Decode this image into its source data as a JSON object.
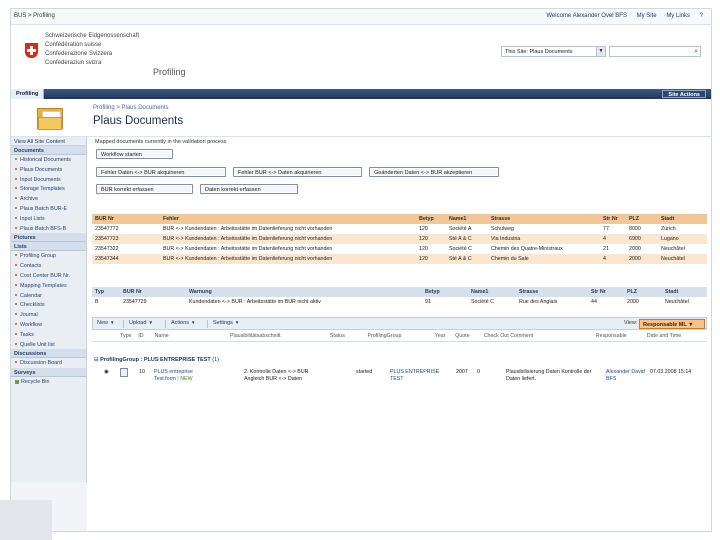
{
  "topbar": {
    "breadcrumb": "BUS > Profiling",
    "links": [
      "Welcome Alexander Ovel BFS",
      "My Site",
      "My Links",
      "?"
    ]
  },
  "header": {
    "confederation_lines": [
      "Schweizerische Eidgenossenschaft",
      "Confédération suisse",
      "Confederazione Svizzera",
      "Confederaziun svizra"
    ],
    "site_name": "Profiling",
    "search_scope": "This Site: Plaus Documents",
    "search_placeholder": ""
  },
  "nav": {
    "tab": "Profiling",
    "site_actions": "Site Actions"
  },
  "title_area": {
    "breadcrumb": "Profiling > Plaus Documents",
    "title": "Plaus Documents"
  },
  "leftnav": {
    "top_link": "View All Site Content",
    "sections": [
      {
        "heading": "Documents",
        "items": [
          "Historical Documents",
          "Plaus Documents",
          "Input Documents",
          "Storage Templates",
          "Archive",
          "Plaus Batch BUR-E",
          "Input Lists",
          "Plaus Batch BFS-B"
        ]
      },
      {
        "heading": "Pictures",
        "items": []
      },
      {
        "heading": "Lists",
        "items": [
          "Profiling Group",
          "Contacts",
          "Cost Center BUR Nr.",
          "Mapping Templates",
          "Calendar",
          "Checklists",
          "Journal",
          "Workflow",
          "Tasks",
          "Quelle Unit list"
        ]
      },
      {
        "heading": "Discussions",
        "items": [
          "Discussion Board"
        ]
      },
      {
        "heading": "Surveys",
        "items": []
      }
    ],
    "recycle_bin": "Recycle Bin"
  },
  "main": {
    "description": "Mapped documents currently in the validation process",
    "buttons": {
      "start": "Workflow starten",
      "b1": "Fehler Daten <-> BUR akquirieren",
      "b2": "Fehler BUR <-> Daten akquirieren",
      "b3": "Geänderten Daten <-> BUR akzeptieren",
      "b4": "BUR korrekt erfassen",
      "b5": "Daten korrekt erfassen"
    },
    "errors_table": {
      "headers": [
        "BUR Nr",
        "Fehler",
        "Betyp",
        "Name1",
        "Strasse",
        "Str Nr",
        "PLZ",
        "Stadt"
      ],
      "rows": [
        [
          "23547772",
          "BUR <-> Kundendaten : Arbeitsstätte im Datenlieferung nicht vorhanden",
          "120",
          "Société A",
          "Schulweg",
          "77",
          "8000",
          "Zürich"
        ],
        [
          "23547723",
          "BUR <-> Kundendaten : Arbeitsstätte im Datenlieferung nicht vorhanden",
          "120",
          "Sté A & C",
          "Via Industria",
          "4",
          "6900",
          "Lugano"
        ],
        [
          "23547322",
          "BUR <-> Kundendaten : Arbeitsstätte im Datenlieferung nicht vorhanden",
          "120",
          "Société C",
          "Chemin des Quatre-Ministraux",
          "21",
          "2000",
          "Neuchâtel"
        ],
        [
          "23547344",
          "BUR <-> Kundendaten : Arbeitsstätte im Datenlieferung nicht vorhanden",
          "120",
          "Sté A & C",
          "Chemin du Sale",
          "4",
          "2000",
          "Neuchâtel"
        ]
      ]
    },
    "warnings_table": {
      "headers": [
        "Typ",
        "BUR Nr",
        "Warnung",
        "Betyp",
        "Name1",
        "Strasse",
        "Str Nr",
        "PLZ",
        "Stadt"
      ],
      "rows": [
        [
          "B",
          "23547729",
          "Kundendaten <-> BUR : Arbeitsstätte im BUR nicht aktiv",
          "91",
          "Société C",
          "Rue des Anglais",
          "44",
          "2000",
          "Neuchâtel"
        ]
      ]
    },
    "toolbar": {
      "new": "New",
      "upload": "Upload",
      "actions": "Actions",
      "settings": "Settings",
      "view_label": "View:",
      "view_value": "Responsable ML"
    },
    "doc_table": {
      "headers": [
        "Type",
        "ID",
        "Name",
        "Plausibilitätsabschnitt",
        "Status",
        "ProfilingGroup",
        "Year",
        "Quote",
        "Check Out Comment",
        "Responsable",
        "Date and Time"
      ],
      "group_label": "ProfilingGroup : PLUS ENTREPRISE TEST",
      "group_count": "(1)",
      "row": {
        "id": "10",
        "name_line1": "PLUS entreprise",
        "name_line2": "Test.form",
        "new_tag": "! NEW",
        "section_line1": "2. Kontrolle Daten <-> BUR",
        "section_line2": "Angleich BUR <-> Daten",
        "status": "started",
        "group_line1": "PLUS ENTREPRISE",
        "group_line2": "TEST",
        "year": "2007",
        "quote": "0",
        "comment_line1": "Plausibilisierung Daten Kontrolle der",
        "comment_line2": "Daten liefert.",
        "responsable_line1": "Alexander David",
        "responsable_line2": "BFS",
        "datetime": "07.03.2008 15:14"
      }
    }
  }
}
